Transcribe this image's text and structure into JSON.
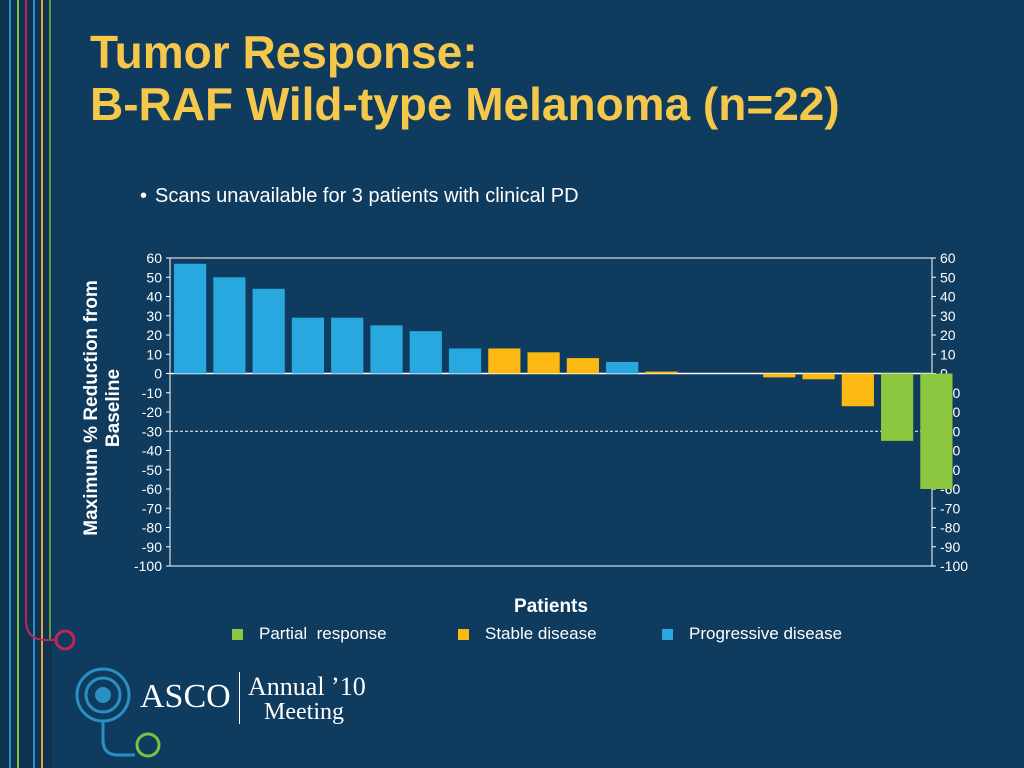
{
  "slide": {
    "title_line1": "Tumor Response:",
    "title_line2": "B-RAF Wild-type Melanoma (n=22)",
    "bullet": "Scans unavailable for 3 patients with clinical PD"
  },
  "branding": {
    "asco": "ASCO",
    "annual": "Annual ’10",
    "meeting": "Meeting"
  },
  "colors": {
    "background": "#0f3b5e",
    "title": "#f5c84c",
    "partial_response": "#8dc63f",
    "stable_disease": "#fdb913",
    "progressive_disease": "#29a8e0"
  },
  "chart_data": {
    "type": "bar",
    "title": "",
    "xlabel": "Patients",
    "ylabel": "Maximum % Reduction from Baseline",
    "ylim": [
      -100,
      60
    ],
    "yticks": [
      60,
      50,
      40,
      30,
      20,
      10,
      0,
      -10,
      -20,
      -30,
      -40,
      -50,
      -60,
      -70,
      -80,
      -90,
      -100
    ],
    "reference_line": -30,
    "legend_position": "bottom",
    "legend": [
      {
        "label": "Partial  response",
        "color": "#8dc63f"
      },
      {
        "label": "Stable disease",
        "color": "#fdb913"
      },
      {
        "label": "Progressive disease",
        "color": "#29a8e0"
      }
    ],
    "bars": [
      {
        "value": 57,
        "category": "Progressive disease"
      },
      {
        "value": 50,
        "category": "Progressive disease"
      },
      {
        "value": 44,
        "category": "Progressive disease"
      },
      {
        "value": 29,
        "category": "Progressive disease"
      },
      {
        "value": 29,
        "category": "Progressive disease"
      },
      {
        "value": 25,
        "category": "Progressive disease"
      },
      {
        "value": 22,
        "category": "Progressive disease"
      },
      {
        "value": 13,
        "category": "Progressive disease"
      },
      {
        "value": 13,
        "category": "Stable disease"
      },
      {
        "value": 11,
        "category": "Stable disease"
      },
      {
        "value": 8,
        "category": "Stable disease"
      },
      {
        "value": 6,
        "category": "Progressive disease"
      },
      {
        "value": 1,
        "category": "Stable disease"
      },
      {
        "value": 0,
        "category": "Stable disease"
      },
      {
        "value": 0,
        "category": "Stable disease"
      },
      {
        "value": -2,
        "category": "Stable disease"
      },
      {
        "value": -3,
        "category": "Stable disease"
      },
      {
        "value": -17,
        "category": "Stable disease"
      },
      {
        "value": -35,
        "category": "Partial response"
      },
      {
        "value": -60,
        "category": "Partial response"
      }
    ]
  }
}
